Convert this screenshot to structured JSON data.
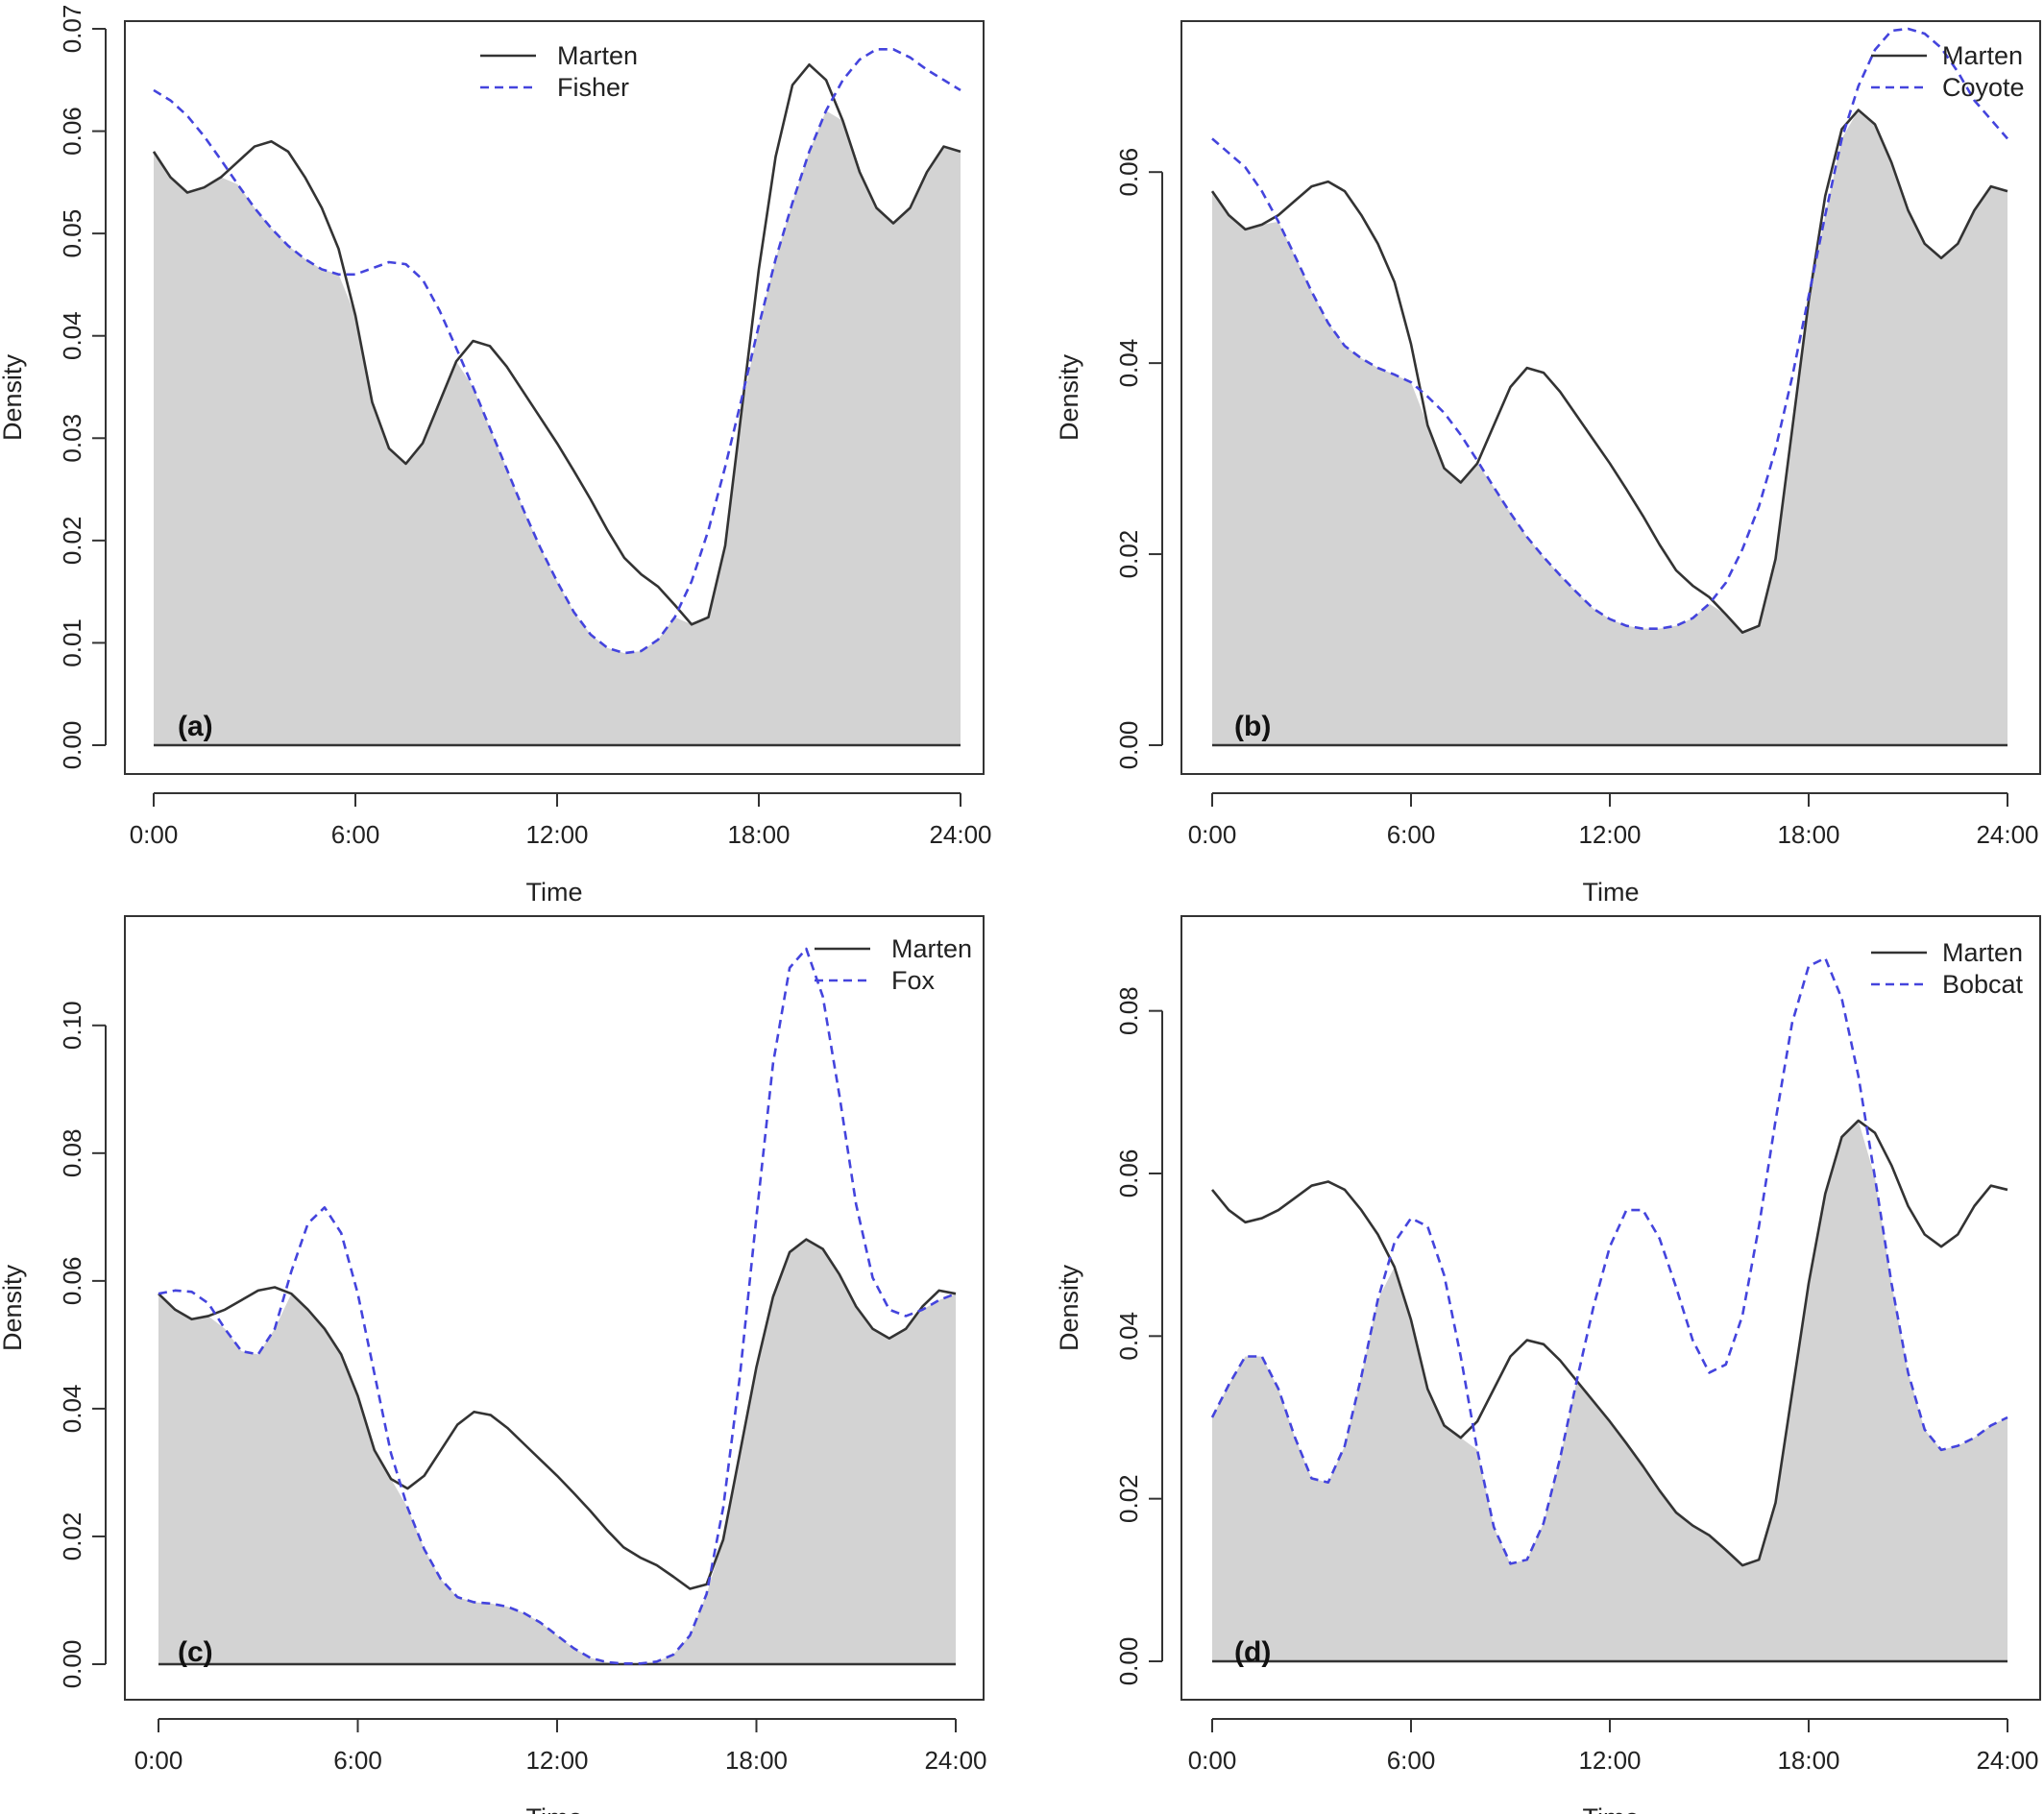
{
  "chart_data": [
    {
      "type": "area",
      "panel_label": "(a)",
      "xlabel": "Time",
      "ylabel": "Density",
      "xlim": [
        0,
        24
      ],
      "ylim": [
        0,
        0.07
      ],
      "x_ticks": [
        0,
        6,
        12,
        18,
        24
      ],
      "x_tick_labels": [
        "0:00",
        "6:00",
        "12:00",
        "18:00",
        "24:00"
      ],
      "y_ticks": [
        0,
        0.01,
        0.02,
        0.03,
        0.04,
        0.05,
        0.06,
        0.07
      ],
      "y_tick_labels": [
        "0.00",
        "0.01",
        "0.02",
        "0.03",
        "0.04",
        "0.05",
        "0.06",
        "0.07"
      ],
      "legend_position": "top-center",
      "overlap_fill_color": "#d3d3d3",
      "series": [
        {
          "name": "Marten",
          "line_style": "solid",
          "color": "#333333",
          "x": [
            0,
            0.5,
            1,
            1.5,
            2,
            2.5,
            3,
            3.5,
            4,
            4.5,
            5,
            5.5,
            6,
            6.5,
            7,
            7.5,
            8,
            8.5,
            9,
            9.5,
            10,
            10.5,
            11,
            11.5,
            12,
            12.5,
            13,
            13.5,
            14,
            14.5,
            15,
            15.5,
            16,
            16.5,
            17,
            17.5,
            18,
            18.5,
            19,
            19.5,
            20,
            20.5,
            21,
            21.5,
            22,
            22.5,
            23,
            23.5,
            24
          ],
          "y": [
            0.058,
            0.0555,
            0.054,
            0.0545,
            0.0555,
            0.057,
            0.0585,
            0.059,
            0.058,
            0.0555,
            0.0525,
            0.0485,
            0.042,
            0.0335,
            0.029,
            0.0275,
            0.0295,
            0.0335,
            0.0375,
            0.0395,
            0.039,
            0.037,
            0.0345,
            0.032,
            0.0295,
            0.0268,
            0.024,
            0.021,
            0.0183,
            0.0167,
            0.0155,
            0.0137,
            0.0118,
            0.0125,
            0.0195,
            0.033,
            0.0465,
            0.0575,
            0.0645,
            0.0665,
            0.065,
            0.061,
            0.056,
            0.0525,
            0.051,
            0.0525,
            0.056,
            0.0585,
            0.058
          ]
        },
        {
          "name": "Fisher",
          "line_style": "dashed",
          "color": "#4444dd",
          "x": [
            0,
            0.5,
            1,
            1.5,
            2,
            2.5,
            3,
            3.5,
            4,
            4.5,
            5,
            5.5,
            6,
            6.5,
            7,
            7.5,
            8,
            8.5,
            9,
            9.5,
            10,
            10.5,
            11,
            11.5,
            12,
            12.5,
            13,
            13.5,
            14,
            14.5,
            15,
            15.5,
            16,
            16.5,
            17,
            17.5,
            18,
            18.5,
            19,
            19.5,
            20,
            20.5,
            21,
            21.5,
            22,
            22.5,
            23,
            23.5,
            24
          ],
          "y": [
            0.064,
            0.063,
            0.0615,
            0.0595,
            0.0572,
            0.0548,
            0.0525,
            0.0505,
            0.0488,
            0.0475,
            0.0465,
            0.046,
            0.046,
            0.0466,
            0.0472,
            0.047,
            0.0455,
            0.0425,
            0.0388,
            0.035,
            0.031,
            0.027,
            0.023,
            0.0193,
            0.016,
            0.013,
            0.0108,
            0.0095,
            0.009,
            0.0092,
            0.0103,
            0.0125,
            0.016,
            0.021,
            0.0272,
            0.034,
            0.041,
            0.0475,
            0.053,
            0.058,
            0.062,
            0.065,
            0.067,
            0.068,
            0.068,
            0.0672,
            0.066,
            0.065,
            0.064
          ]
        }
      ]
    },
    {
      "type": "area",
      "panel_label": "(b)",
      "xlabel": "Time",
      "ylabel": "Density",
      "xlim": [
        0,
        24
      ],
      "ylim": [
        0,
        0.075
      ],
      "x_ticks": [
        0,
        6,
        12,
        18,
        24
      ],
      "x_tick_labels": [
        "0:00",
        "6:00",
        "12:00",
        "18:00",
        "24:00"
      ],
      "y_ticks": [
        0,
        0.02,
        0.04,
        0.06
      ],
      "y_tick_labels": [
        "0.00",
        "0.02",
        "0.04",
        "0.06"
      ],
      "legend_position": "top-right",
      "overlap_fill_color": "#d3d3d3",
      "series": [
        {
          "name": "Marten",
          "line_style": "solid",
          "color": "#333333",
          "x": [
            0,
            0.5,
            1,
            1.5,
            2,
            2.5,
            3,
            3.5,
            4,
            4.5,
            5,
            5.5,
            6,
            6.5,
            7,
            7.5,
            8,
            8.5,
            9,
            9.5,
            10,
            10.5,
            11,
            11.5,
            12,
            12.5,
            13,
            13.5,
            14,
            14.5,
            15,
            15.5,
            16,
            16.5,
            17,
            17.5,
            18,
            18.5,
            19,
            19.5,
            20,
            20.5,
            21,
            21.5,
            22,
            22.5,
            23,
            23.5,
            24
          ],
          "y": [
            0.058,
            0.0555,
            0.054,
            0.0545,
            0.0555,
            0.057,
            0.0585,
            0.059,
            0.058,
            0.0555,
            0.0525,
            0.0485,
            0.042,
            0.0335,
            0.029,
            0.0275,
            0.0295,
            0.0335,
            0.0375,
            0.0395,
            0.039,
            0.037,
            0.0345,
            0.032,
            0.0295,
            0.0268,
            0.024,
            0.021,
            0.0183,
            0.0167,
            0.0155,
            0.0137,
            0.0118,
            0.0125,
            0.0195,
            0.033,
            0.0465,
            0.0575,
            0.0645,
            0.0665,
            0.065,
            0.061,
            0.056,
            0.0525,
            0.051,
            0.0525,
            0.056,
            0.0585,
            0.058
          ]
        },
        {
          "name": "Coyote",
          "line_style": "dashed",
          "color": "#4444dd",
          "x": [
            0,
            0.5,
            1,
            1.5,
            2,
            2.5,
            3,
            3.5,
            4,
            4.5,
            5,
            5.5,
            6,
            6.5,
            7,
            7.5,
            8,
            8.5,
            9,
            9.5,
            10,
            10.5,
            11,
            11.5,
            12,
            12.5,
            13,
            13.5,
            14,
            14.5,
            15,
            15.5,
            16,
            16.5,
            17,
            17.5,
            18,
            18.5,
            19,
            19.5,
            20,
            20.5,
            21,
            21.5,
            22,
            22.5,
            23,
            23.5,
            24
          ],
          "y": [
            0.0635,
            0.062,
            0.0605,
            0.058,
            0.0548,
            0.0512,
            0.0475,
            0.0442,
            0.0418,
            0.0405,
            0.0395,
            0.0388,
            0.038,
            0.0365,
            0.0348,
            0.0325,
            0.0298,
            0.027,
            0.0243,
            0.0218,
            0.0197,
            0.0178,
            0.016,
            0.0143,
            0.0132,
            0.0125,
            0.0122,
            0.0122,
            0.0125,
            0.0133,
            0.0148,
            0.017,
            0.0205,
            0.025,
            0.031,
            0.0385,
            0.047,
            0.0555,
            0.0635,
            0.069,
            0.0728,
            0.0748,
            0.075,
            0.0745,
            0.073,
            0.0705,
            0.0675,
            0.0655,
            0.0635
          ]
        }
      ]
    },
    {
      "type": "area",
      "panel_label": "(c)",
      "xlabel": "Time",
      "ylabel": "Density",
      "xlim": [
        0,
        24
      ],
      "ylim": [
        0,
        0.115
      ],
      "x_ticks": [
        0,
        6,
        12,
        18,
        24
      ],
      "x_tick_labels": [
        "0:00",
        "6:00",
        "12:00",
        "18:00",
        "24:00"
      ],
      "y_ticks": [
        0,
        0.02,
        0.04,
        0.06,
        0.08,
        0.1
      ],
      "y_tick_labels": [
        "0.00",
        "0.02",
        "0.04",
        "0.06",
        "0.08",
        "0.10"
      ],
      "legend_position": "top-right",
      "overlap_fill_color": "#d3d3d3",
      "series": [
        {
          "name": "Marten",
          "line_style": "solid",
          "color": "#333333",
          "x": [
            0,
            0.5,
            1,
            1.5,
            2,
            2.5,
            3,
            3.5,
            4,
            4.5,
            5,
            5.5,
            6,
            6.5,
            7,
            7.5,
            8,
            8.5,
            9,
            9.5,
            10,
            10.5,
            11,
            11.5,
            12,
            12.5,
            13,
            13.5,
            14,
            14.5,
            15,
            15.5,
            16,
            16.5,
            17,
            17.5,
            18,
            18.5,
            19,
            19.5,
            20,
            20.5,
            21,
            21.5,
            22,
            22.5,
            23,
            23.5,
            24
          ],
          "y": [
            0.058,
            0.0555,
            0.054,
            0.0545,
            0.0555,
            0.057,
            0.0585,
            0.059,
            0.058,
            0.0555,
            0.0525,
            0.0485,
            0.042,
            0.0335,
            0.029,
            0.0275,
            0.0295,
            0.0335,
            0.0375,
            0.0395,
            0.039,
            0.037,
            0.0345,
            0.032,
            0.0295,
            0.0268,
            0.024,
            0.021,
            0.0183,
            0.0167,
            0.0155,
            0.0137,
            0.0118,
            0.0125,
            0.0195,
            0.033,
            0.0465,
            0.0575,
            0.0645,
            0.0665,
            0.065,
            0.061,
            0.056,
            0.0525,
            0.051,
            0.0525,
            0.056,
            0.0585,
            0.058
          ]
        },
        {
          "name": "Fox",
          "line_style": "dashed",
          "color": "#4444dd",
          "x": [
            0,
            0.5,
            1,
            1.5,
            2,
            2.5,
            3,
            3.5,
            4,
            4.5,
            5,
            5.5,
            6,
            6.5,
            7,
            7.5,
            8,
            8.5,
            9,
            9.5,
            10,
            10.5,
            11,
            11.5,
            12,
            12.5,
            13,
            13.5,
            14,
            14.5,
            15,
            15.5,
            16,
            16.5,
            17,
            17.5,
            18,
            18.5,
            19,
            19.5,
            20,
            20.5,
            21,
            21.5,
            22,
            22.5,
            23,
            23.5,
            24
          ],
          "y": [
            0.058,
            0.0585,
            0.0583,
            0.0565,
            0.0525,
            0.049,
            0.0485,
            0.0525,
            0.0615,
            0.069,
            0.0715,
            0.0675,
            0.058,
            0.0455,
            0.033,
            0.0245,
            0.018,
            0.0133,
            0.0105,
            0.0097,
            0.0095,
            0.009,
            0.008,
            0.0065,
            0.0045,
            0.0025,
            0.001,
            0.0003,
            0.0001,
            0.0001,
            0.0004,
            0.0015,
            0.0045,
            0.011,
            0.0245,
            0.045,
            0.07,
            0.094,
            0.109,
            0.112,
            0.1045,
            0.089,
            0.072,
            0.0605,
            0.0555,
            0.0545,
            0.0555,
            0.057,
            0.058
          ]
        }
      ]
    },
    {
      "type": "area",
      "panel_label": "(d)",
      "xlabel": "Time",
      "ylabel": "Density",
      "xlim": [
        0,
        24
      ],
      "ylim": [
        0,
        0.09
      ],
      "x_ticks": [
        0,
        6,
        12,
        18,
        24
      ],
      "x_tick_labels": [
        "0:00",
        "6:00",
        "12:00",
        "18:00",
        "24:00"
      ],
      "y_ticks": [
        0,
        0.02,
        0.04,
        0.06,
        0.08
      ],
      "y_tick_labels": [
        "0.00",
        "0.02",
        "0.04",
        "0.06",
        "0.08"
      ],
      "legend_position": "top-right",
      "overlap_fill_color": "#d3d3d3",
      "series": [
        {
          "name": "Marten",
          "line_style": "solid",
          "color": "#333333",
          "x": [
            0,
            0.5,
            1,
            1.5,
            2,
            2.5,
            3,
            3.5,
            4,
            4.5,
            5,
            5.5,
            6,
            6.5,
            7,
            7.5,
            8,
            8.5,
            9,
            9.5,
            10,
            10.5,
            11,
            11.5,
            12,
            12.5,
            13,
            13.5,
            14,
            14.5,
            15,
            15.5,
            16,
            16.5,
            17,
            17.5,
            18,
            18.5,
            19,
            19.5,
            20,
            20.5,
            21,
            21.5,
            22,
            22.5,
            23,
            23.5,
            24
          ],
          "y": [
            0.058,
            0.0555,
            0.054,
            0.0545,
            0.0555,
            0.057,
            0.0585,
            0.059,
            0.058,
            0.0555,
            0.0525,
            0.0485,
            0.042,
            0.0335,
            0.029,
            0.0275,
            0.0295,
            0.0335,
            0.0375,
            0.0395,
            0.039,
            0.037,
            0.0345,
            0.032,
            0.0295,
            0.0268,
            0.024,
            0.021,
            0.0183,
            0.0167,
            0.0155,
            0.0137,
            0.0118,
            0.0125,
            0.0195,
            0.033,
            0.0465,
            0.0575,
            0.0645,
            0.0665,
            0.065,
            0.061,
            0.056,
            0.0525,
            0.051,
            0.0525,
            0.056,
            0.0585,
            0.058
          ]
        },
        {
          "name": "Bobcat",
          "line_style": "dashed",
          "color": "#4444dd",
          "x": [
            0,
            0.5,
            1,
            1.5,
            2,
            2.5,
            3,
            3.5,
            4,
            4.5,
            5,
            5.5,
            6,
            6.5,
            7,
            7.5,
            8,
            8.5,
            9,
            9.5,
            10,
            10.5,
            11,
            11.5,
            12,
            12.5,
            13,
            13.5,
            14,
            14.5,
            15,
            15.5,
            16,
            16.5,
            17,
            17.5,
            18,
            18.5,
            19,
            19.5,
            20,
            20.5,
            21,
            21.5,
            22,
            22.5,
            23,
            23.5,
            24
          ],
          "y": [
            0.03,
            0.034,
            0.0375,
            0.0375,
            0.0335,
            0.0275,
            0.0225,
            0.022,
            0.0265,
            0.035,
            0.0445,
            0.0515,
            0.0545,
            0.0535,
            0.0475,
            0.0375,
            0.026,
            0.0165,
            0.012,
            0.0125,
            0.017,
            0.025,
            0.0345,
            0.0435,
            0.051,
            0.0555,
            0.0555,
            0.052,
            0.046,
            0.0395,
            0.0355,
            0.0365,
            0.0425,
            0.0535,
            0.0665,
            0.0785,
            0.0855,
            0.0865,
            0.0815,
            0.072,
            0.0595,
            0.0465,
            0.0355,
            0.0285,
            0.026,
            0.0265,
            0.0275,
            0.029,
            0.03
          ]
        }
      ]
    }
  ]
}
